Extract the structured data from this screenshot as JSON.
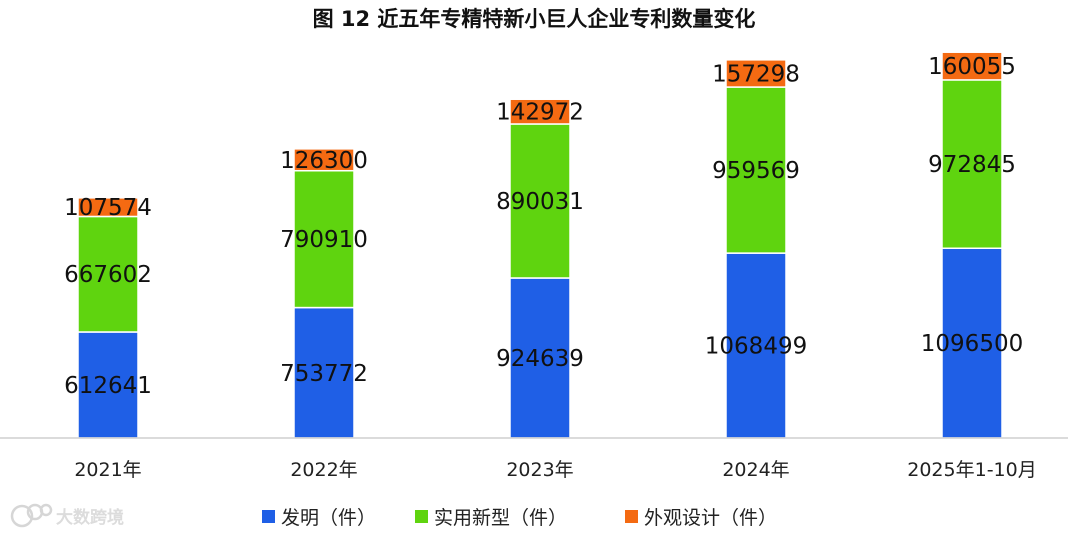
{
  "chart_data": {
    "type": "bar",
    "stacked": true,
    "title": "图 12  近五年专精特新小巨人企业专利数量变化",
    "categories": [
      "2021年",
      "2022年",
      "2023年",
      "2024年",
      "2025年1-10月"
    ],
    "series": [
      {
        "name": "发明（件）",
        "color": "#1f5fe6",
        "values": [
          612641,
          753772,
          924639,
          1068499,
          1096500
        ]
      },
      {
        "name": "实用新型（件）",
        "color": "#5fd40f",
        "values": [
          667602,
          790910,
          890031,
          959569,
          972845
        ]
      },
      {
        "name": "外观设计（件）",
        "color": "#f46a12",
        "values": [
          107574,
          126300,
          142972,
          157298,
          160055
        ]
      }
    ],
    "xlabel": "",
    "ylabel": "",
    "ylim": [
      0,
      2300000
    ],
    "grid": false,
    "legend": "bottom"
  },
  "watermark": {
    "text": "大数跨境",
    "icon": "watermark-logo-icon"
  }
}
